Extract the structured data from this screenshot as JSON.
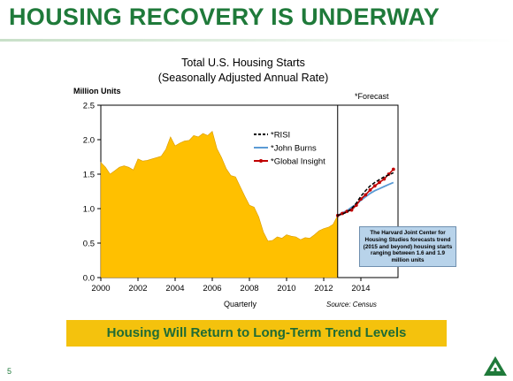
{
  "slide": {
    "title": "HOUSING RECOVERY IS UNDERWAY",
    "banner": "Housing Will Return to Long-Term Trend Levels",
    "page_number": "5"
  },
  "colors": {
    "title_green": "#1f7a3a",
    "area_fill": "#ffc000",
    "risi": "#000000",
    "john_burns": "#5b9bd5",
    "global_insight": "#c00000",
    "banner": "#f4c20d",
    "note_box": "#b8d3ea"
  },
  "chart_data": {
    "type": "area",
    "title_line1": "Total U.S. Housing Starts",
    "title_line2": "(Seasonally Adjusted Annual Rate)",
    "ylabel": "Million Units",
    "xlabel": "Quarterly",
    "forecast_label": "*Forecast",
    "source": "Source: Census",
    "xlim": [
      2000,
      2016
    ],
    "ylim": [
      0,
      2.5
    ],
    "x_ticks": [
      2000,
      2002,
      2004,
      2006,
      2008,
      2010,
      2012,
      2014
    ],
    "y_ticks": [
      "0.0",
      "0.5",
      "1.0",
      "1.5",
      "2.0",
      "2.5"
    ],
    "forecast_start": 2012.75,
    "grid": false,
    "legend_position": "center",
    "actual": {
      "x": [
        2000.0,
        2000.25,
        2000.5,
        2000.75,
        2001.0,
        2001.25,
        2001.5,
        2001.75,
        2002.0,
        2002.25,
        2002.5,
        2002.75,
        2003.0,
        2003.25,
        2003.5,
        2003.75,
        2004.0,
        2004.25,
        2004.5,
        2004.75,
        2005.0,
        2005.25,
        2005.5,
        2005.75,
        2006.0,
        2006.25,
        2006.5,
        2006.75,
        2007.0,
        2007.25,
        2007.5,
        2007.75,
        2008.0,
        2008.25,
        2008.5,
        2008.75,
        2009.0,
        2009.25,
        2009.5,
        2009.75,
        2010.0,
        2010.25,
        2010.5,
        2010.75,
        2011.0,
        2011.25,
        2011.5,
        2011.75,
        2012.0,
        2012.25,
        2012.5,
        2012.75
      ],
      "y": [
        1.67,
        1.6,
        1.5,
        1.55,
        1.6,
        1.62,
        1.6,
        1.56,
        1.72,
        1.69,
        1.7,
        1.72,
        1.74,
        1.76,
        1.86,
        2.04,
        1.91,
        1.95,
        1.98,
        1.99,
        2.06,
        2.04,
        2.09,
        2.06,
        2.12,
        1.87,
        1.74,
        1.58,
        1.48,
        1.46,
        1.32,
        1.18,
        1.05,
        1.02,
        0.88,
        0.66,
        0.53,
        0.54,
        0.59,
        0.57,
        0.62,
        0.6,
        0.59,
        0.55,
        0.58,
        0.57,
        0.62,
        0.68,
        0.71,
        0.73,
        0.77,
        0.9
      ]
    },
    "series": [
      {
        "name": "*RISI",
        "x": [
          2012.75,
          2013.0,
          2013.25,
          2013.5,
          2013.75,
          2014.0,
          2014.25,
          2014.5,
          2014.75,
          2015.0,
          2015.25,
          2015.5,
          2015.75
        ],
        "y": [
          0.9,
          0.92,
          0.95,
          1.0,
          1.08,
          1.18,
          1.26,
          1.33,
          1.38,
          1.42,
          1.46,
          1.49,
          1.52
        ]
      },
      {
        "name": "*John Burns",
        "x": [
          2012.75,
          2013.0,
          2013.25,
          2013.5,
          2013.75,
          2014.0,
          2014.25,
          2014.5,
          2014.75,
          2015.0,
          2015.25,
          2015.5,
          2015.75
        ],
        "y": [
          0.9,
          0.94,
          0.97,
          1.02,
          1.06,
          1.12,
          1.17,
          1.22,
          1.26,
          1.29,
          1.32,
          1.35,
          1.38
        ]
      },
      {
        "name": "*Global Insight",
        "x": [
          2012.75,
          2013.0,
          2013.25,
          2013.5,
          2013.75,
          2014.0,
          2014.25,
          2014.5,
          2014.75,
          2015.0,
          2015.25,
          2015.5,
          2015.75
        ],
        "y": [
          0.9,
          0.93,
          0.96,
          0.98,
          1.05,
          1.14,
          1.2,
          1.27,
          1.33,
          1.38,
          1.43,
          1.5,
          1.57
        ]
      }
    ],
    "annotation": "The Harvard Joint Center for Housing Studies forecasts trend (2015 and beyond) housing starts ranging between 1.6 and 1.9 million units"
  }
}
